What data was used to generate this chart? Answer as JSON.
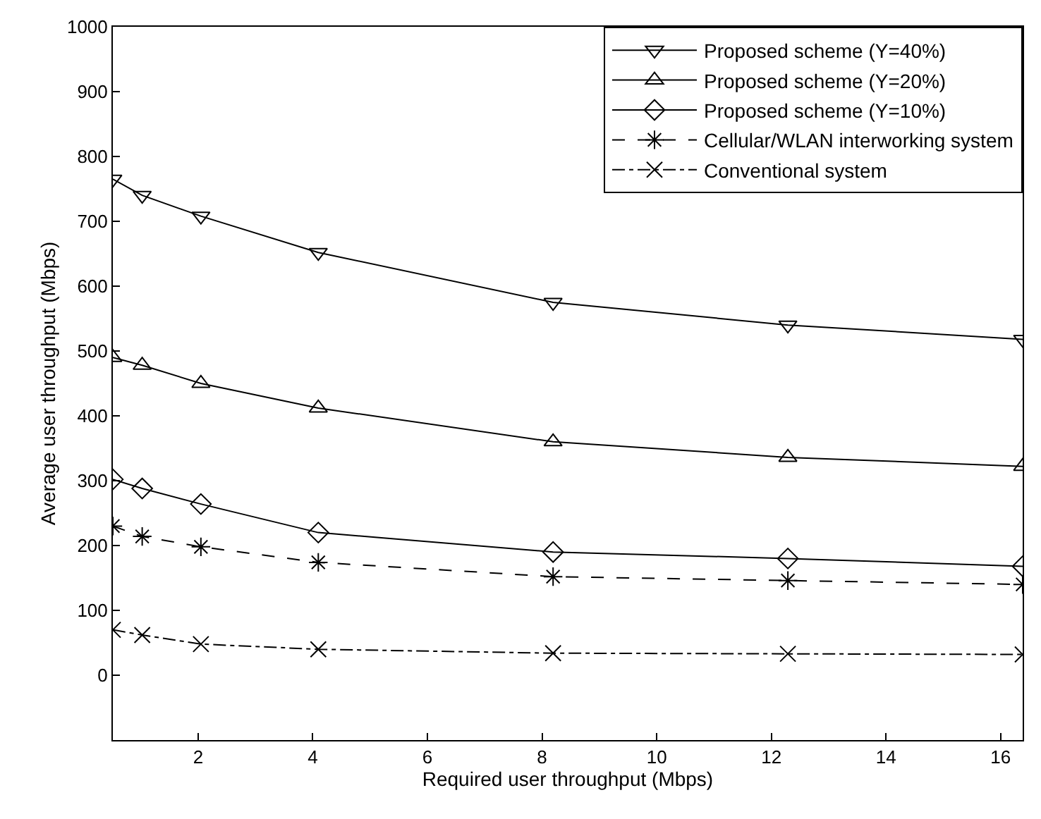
{
  "chart_data": {
    "type": "line",
    "xlabel": "Required user throughput (Mbps)",
    "ylabel": "Average user throughput (Mbps)",
    "x": [
      0.512,
      1.024,
      2.048,
      4.096,
      8.192,
      12.288,
      16.384
    ],
    "xlim": [
      0.512,
      16.384
    ],
    "xticks": [
      2,
      4,
      6,
      8,
      10,
      12,
      14,
      16
    ],
    "ylim": [
      -100,
      1000
    ],
    "yticks": [
      0,
      100,
      200,
      300,
      400,
      500,
      600,
      700,
      800,
      900,
      1000
    ],
    "legend": "top right",
    "series": [
      {
        "name": "Proposed scheme (Y=40%)",
        "color": "#000000",
        "marker": "triangle_down",
        "line_style": "solid",
        "values": [
          765,
          740,
          708,
          652,
          575,
          540,
          518
        ]
      },
      {
        "name": "Proposed scheme (Y=20%)",
        "color": "#000000",
        "marker": "triangle",
        "line_style": "solid",
        "values": [
          490,
          478,
          450,
          412,
          360,
          336,
          322
        ]
      },
      {
        "name": "Proposed scheme (Y=10%)",
        "color": "#000000",
        "marker": "diamond",
        "line_style": "solid",
        "values": [
          302,
          288,
          264,
          220,
          190,
          180,
          168
        ]
      },
      {
        "name": "Cellular/WLAN interworking system",
        "color": "#000000",
        "marker": "cross",
        "line_style": "dashed",
        "values": [
          230,
          214,
          198,
          174,
          152,
          146,
          140
        ]
      },
      {
        "name": "Conventional system",
        "color": "#000000",
        "marker": "x",
        "line_style": "dashdot",
        "values": [
          70,
          62,
          48,
          40,
          34,
          33,
          32
        ]
      }
    ]
  }
}
